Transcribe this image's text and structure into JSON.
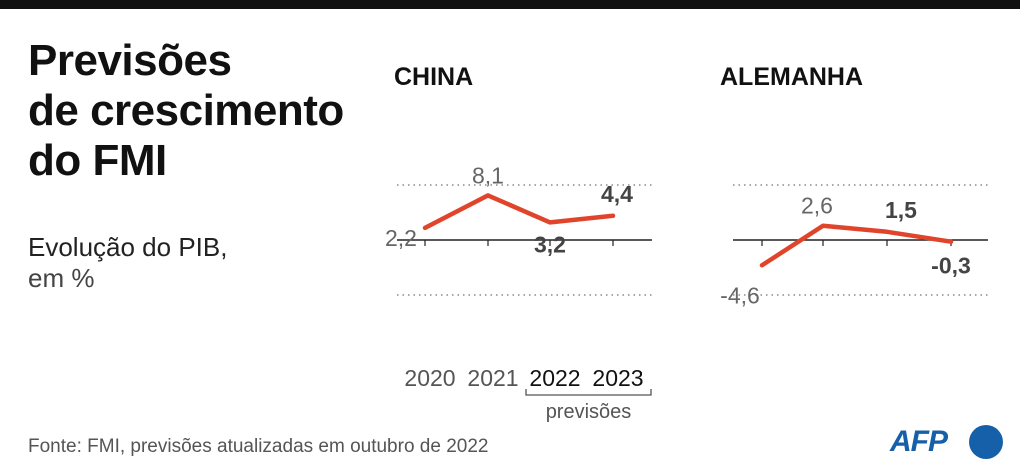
{
  "title_lines": [
    "Previsões",
    "de crescimento",
    "do FMI"
  ],
  "subtitle_lines": [
    "Evolução do PIB,",
    "em %"
  ],
  "source": "Fonte: FMI, previsões atualizadas em outubro de 2022",
  "logo_text": "AFP",
  "forecast_note": "previsões",
  "colors": {
    "line": "#e0452c",
    "grid": "#8a8a8a",
    "axis": "#222222",
    "logo": "#1560a8"
  },
  "chart_data": [
    {
      "type": "line",
      "title": "CHINA",
      "x": [
        "2020",
        "2021",
        "2022",
        "2023"
      ],
      "forecast_x": [
        "2022",
        "2023"
      ],
      "values": [
        2.2,
        8.1,
        3.2,
        4.4
      ],
      "value_labels": [
        "2,2",
        "8,1",
        "3,2",
        "4,4"
      ],
      "ylim": [
        -10,
        10
      ],
      "grid": true,
      "xlabel": "",
      "ylabel": ""
    },
    {
      "type": "line",
      "title": "ALEMANHA",
      "x": [
        "2020",
        "2021",
        "2022",
        "2023"
      ],
      "forecast_x": [
        "2022",
        "2023"
      ],
      "values": [
        -4.6,
        2.6,
        1.5,
        -0.3
      ],
      "value_labels": [
        "-4,6",
        "2,6",
        "1,5",
        "-0,3"
      ],
      "ylim": [
        -10,
        10
      ],
      "grid": true,
      "xlabel": "",
      "ylabel": ""
    }
  ]
}
